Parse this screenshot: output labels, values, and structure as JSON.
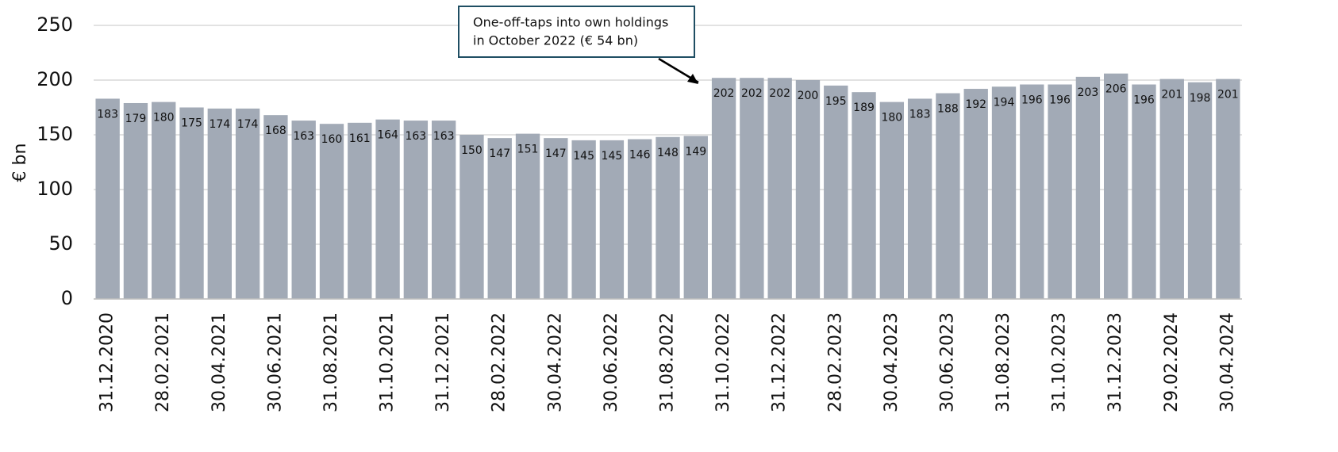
{
  "chart_data": {
    "type": "bar",
    "ylabel": "€ bn",
    "annotation": [
      "One-off-taps into own holdings",
      "in October 2022 (€ 54 bn)"
    ],
    "categories": [
      "31.12.2020",
      null,
      "28.02.2021",
      null,
      "30.04.2021",
      null,
      "30.06.2021",
      null,
      "31.08.2021",
      null,
      "31.10.2021",
      null,
      "31.12.2021",
      null,
      "28.02.2022",
      null,
      "30.04.2022",
      null,
      "30.06.2022",
      null,
      "31.08.2022",
      null,
      "31.10.2022",
      null,
      "31.12.2022",
      null,
      "28.02.2023",
      null,
      "30.04.2023",
      null,
      "30.06.2023",
      null,
      "31.08.2023",
      null,
      "31.10.2023",
      null,
      "31.12.2023",
      null,
      "29.02.2024",
      null,
      "30.04.2024"
    ],
    "values": [
      183,
      179,
      180,
      175,
      174,
      174,
      168,
      163,
      160,
      161,
      164,
      163,
      163,
      150,
      147,
      151,
      147,
      145,
      145,
      146,
      148,
      149,
      202,
      202,
      202,
      200,
      195,
      189,
      180,
      183,
      188,
      192,
      194,
      196,
      196,
      203,
      206,
      196,
      201,
      198,
      201
    ],
    "color": "#a2aab6",
    "ylim": [
      0,
      250
    ],
    "yticks": [
      0,
      50,
      100,
      150,
      200,
      250
    ],
    "grid": true
  }
}
